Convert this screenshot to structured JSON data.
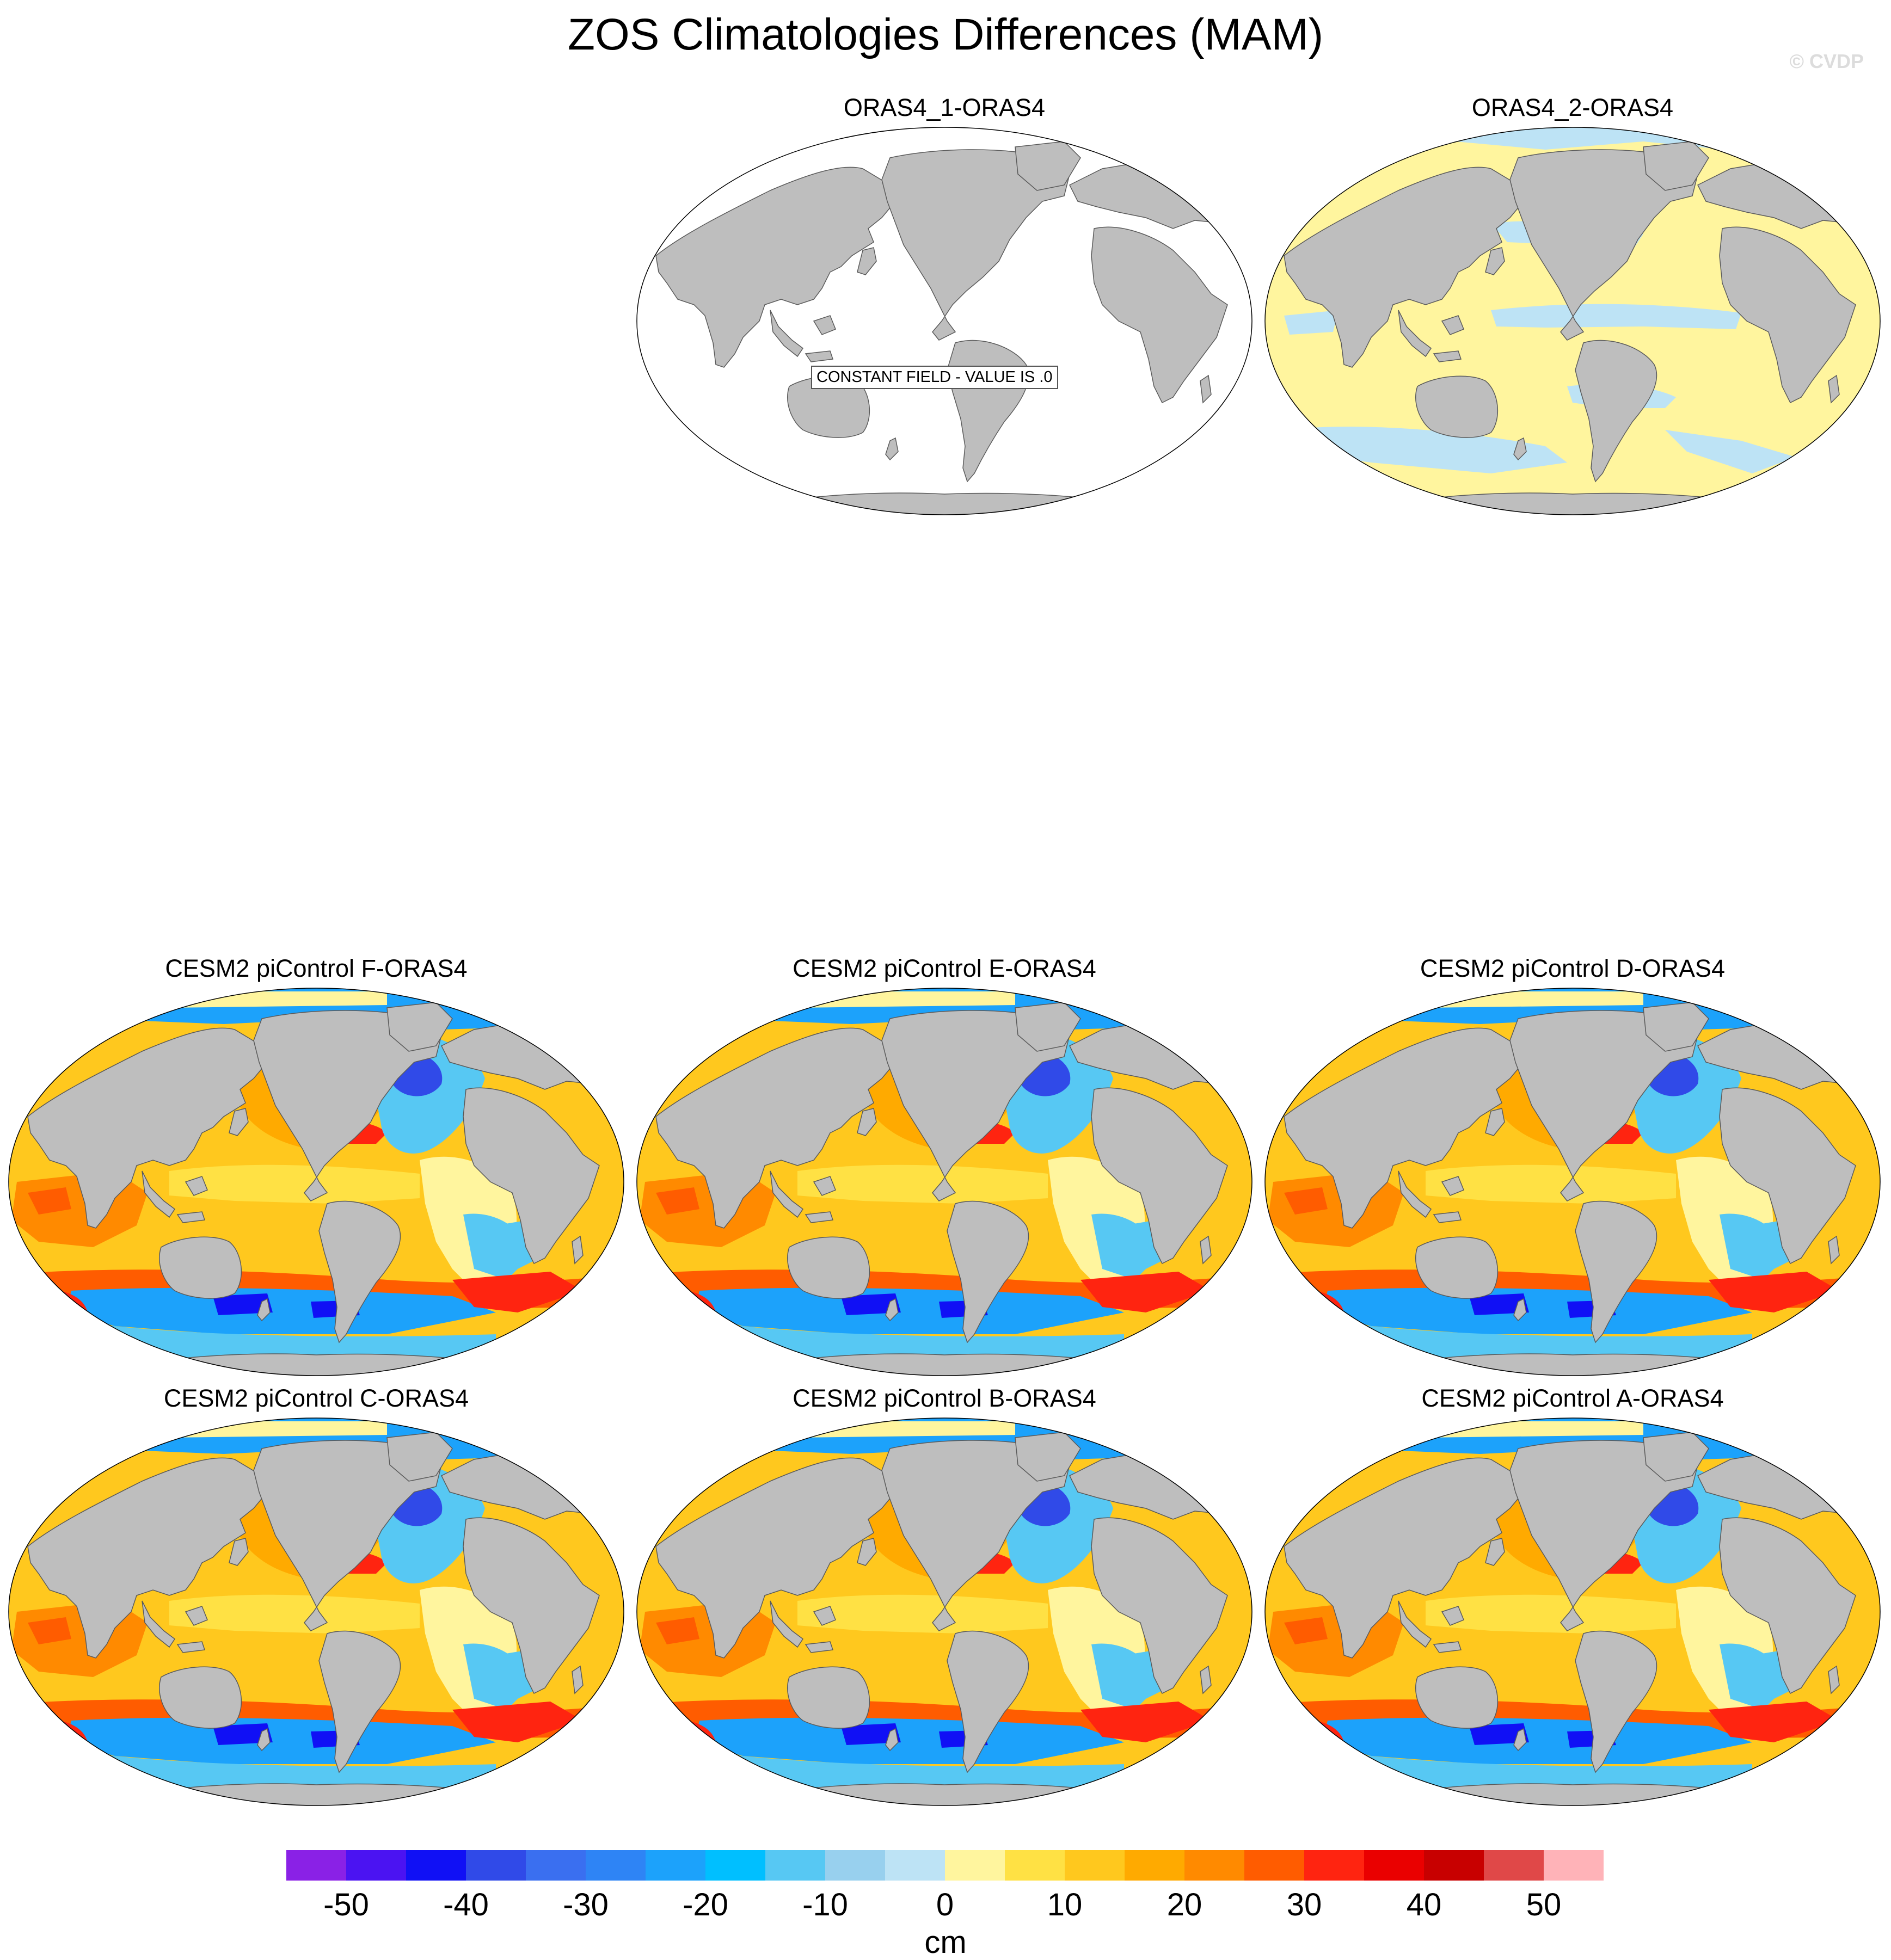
{
  "figure": {
    "title": "ZOS Climatologies Differences (MAM)",
    "credit": "© CVDP"
  },
  "colors": {
    "land": "#bebebe",
    "coast": "#5a5a5a",
    "ocean_empty": "#ffffff"
  },
  "panels": [
    {
      "id": "oras4-1",
      "title": "ORAS4_1-ORAS4",
      "field": "constant",
      "note": "CONSTANT FIELD - VALUE IS .0"
    },
    {
      "id": "oras4-2",
      "title": "ORAS4_2-ORAS4",
      "field": "near-zero"
    },
    {
      "id": "cesm2-f",
      "title": "CESM2 piControl F-ORAS4",
      "field": "model"
    },
    {
      "id": "cesm2-e",
      "title": "CESM2 piControl E-ORAS4",
      "field": "model"
    },
    {
      "id": "cesm2-d",
      "title": "CESM2 piControl D-ORAS4",
      "field": "model"
    },
    {
      "id": "cesm2-c",
      "title": "CESM2 piControl C-ORAS4",
      "field": "model"
    },
    {
      "id": "cesm2-b",
      "title": "CESM2 piControl B-ORAS4",
      "field": "model"
    },
    {
      "id": "cesm2-a",
      "title": "CESM2 piControl A-ORAS4",
      "field": "model"
    }
  ],
  "colorbar": {
    "units": "cm",
    "levels": [
      -50,
      -45,
      -40,
      -35,
      -30,
      -25,
      -20,
      -15,
      -10,
      -5,
      0,
      5,
      10,
      15,
      20,
      25,
      30,
      35,
      40,
      45,
      50
    ],
    "colors": [
      "#8a21e6",
      "#4b13f2",
      "#1010f5",
      "#304ae8",
      "#3a6ff0",
      "#2e84f5",
      "#1ca2fb",
      "#00bfff",
      "#57c8f3",
      "#98d0ee",
      "#bde3f5",
      "#fff59e",
      "#ffe144",
      "#ffc81e",
      "#ffaa00",
      "#ff8a00",
      "#ff5c00",
      "#ff2410",
      "#ea0000",
      "#c80000",
      "#e04848",
      "#ffb3b8"
    ],
    "tick_labels": [
      "-50",
      "-40",
      "-30",
      "-20",
      "-10",
      "0",
      "10",
      "20",
      "30",
      "40",
      "50"
    ]
  }
}
